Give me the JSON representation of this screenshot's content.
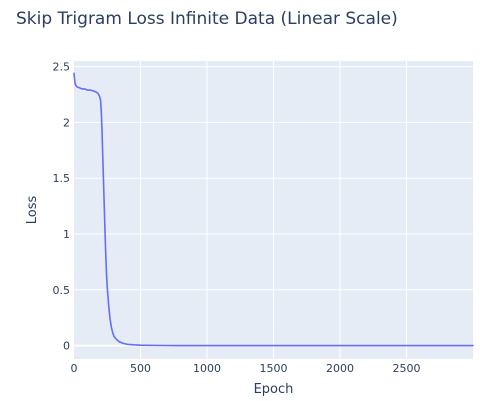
{
  "chart_data": {
    "type": "line",
    "title": "Skip Trigram Loss Infinite Data (Linear Scale)",
    "xlabel": "Epoch",
    "ylabel": "Loss",
    "xlim": [
      0,
      3000
    ],
    "ylim": [
      -0.12,
      2.55
    ],
    "x_ticks": [
      0,
      500,
      1000,
      1500,
      2000,
      2500
    ],
    "x_tick_labels": [
      "0",
      "500",
      "1000",
      "1500",
      "2000",
      "2500"
    ],
    "y_ticks": [
      0,
      0.5,
      1,
      1.5,
      2,
      2.5
    ],
    "y_tick_labels": [
      "0",
      "0.5",
      "1",
      "1.5",
      "2",
      "2.5"
    ],
    "grid": true,
    "legend": false,
    "colors": {
      "plot_background": "#e5ecf6",
      "grid": "#ffffff",
      "line": "#636efa",
      "text": "#2a3f5f"
    },
    "series": [
      {
        "x": [
          0,
          5,
          10,
          20,
          40,
          60,
          80,
          100,
          120,
          150,
          170,
          180,
          190,
          200,
          205,
          210,
          215,
          220,
          225,
          230,
          235,
          240,
          245,
          250,
          260,
          270,
          280,
          290,
          300,
          320,
          340,
          370,
          400,
          450,
          500,
          600,
          700,
          800,
          1000,
          1500,
          2000,
          2500,
          3000
        ],
        "y": [
          2.44,
          2.38,
          2.34,
          2.32,
          2.31,
          2.3,
          2.3,
          2.29,
          2.29,
          2.28,
          2.27,
          2.26,
          2.24,
          2.2,
          2.1,
          1.95,
          1.75,
          1.55,
          1.35,
          1.15,
          0.95,
          0.78,
          0.63,
          0.52,
          0.37,
          0.25,
          0.17,
          0.12,
          0.085,
          0.055,
          0.035,
          0.02,
          0.012,
          0.007,
          0.004,
          0.002,
          0.001,
          0.0005,
          0.0003,
          0.0002,
          0.0001,
          0.0001,
          0.0001
        ]
      }
    ]
  }
}
